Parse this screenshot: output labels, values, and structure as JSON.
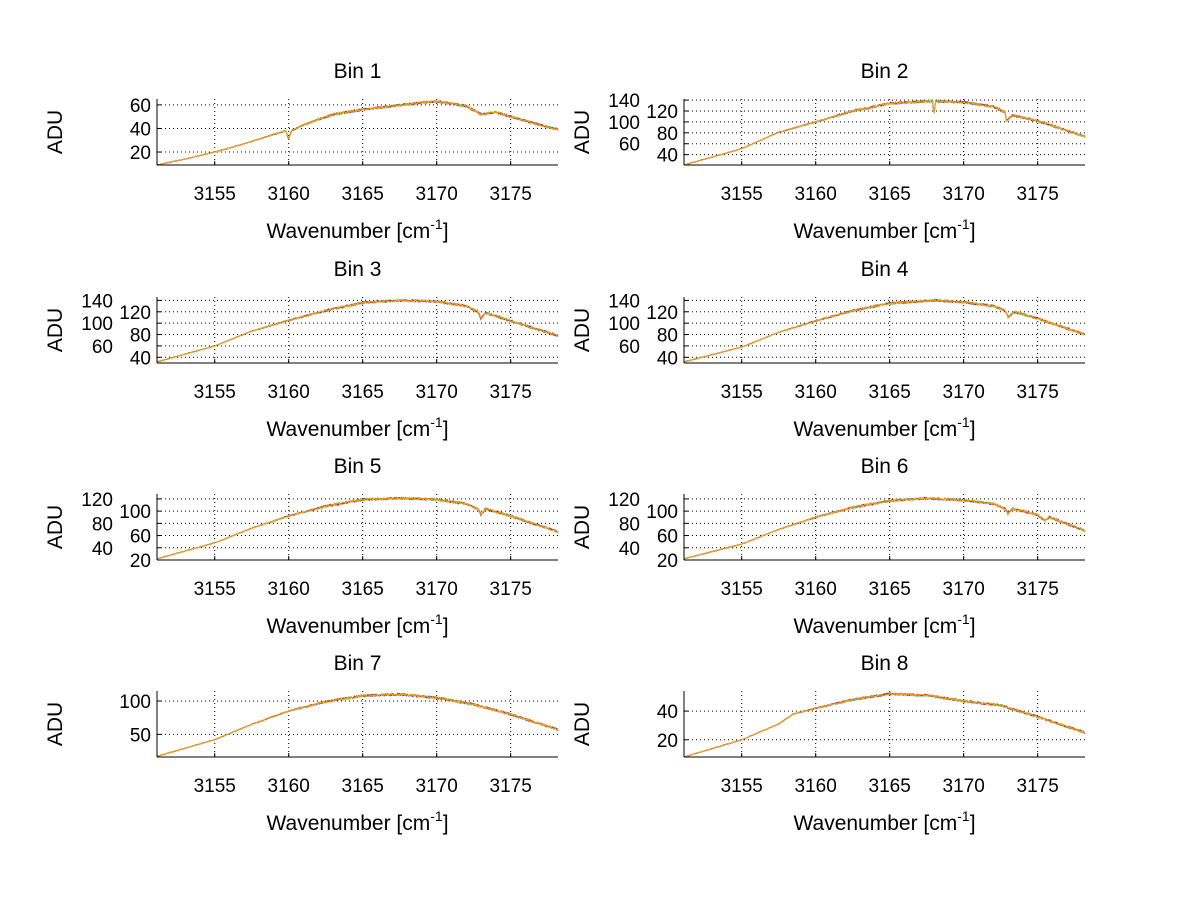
{
  "chart_data": {
    "type": "line",
    "layout": "4 rows x 2 columns",
    "xlabel": "Wavenumber [cm",
    "xlabel_superscript": "-1",
    "xlabel_suffix": "]",
    "ylabel": "ADU",
    "xlim": [
      3151.1,
      3178.2
    ],
    "xticks": [
      3155,
      3160,
      3165,
      3170,
      3175
    ],
    "grid": "dotted",
    "series_colors": [
      "#1f1f7a",
      "#4cc24c",
      "#c03030",
      "#f2a81d"
    ],
    "subplots": [
      {
        "title": "Bin 1",
        "ylim": [
          9,
          65
        ],
        "yticks": [
          20,
          40,
          60
        ],
        "x": [
          3151.1,
          3153,
          3155,
          3157,
          3159,
          3159.8,
          3160,
          3160.2,
          3161,
          3163,
          3165,
          3167,
          3169,
          3170,
          3172,
          3173,
          3174,
          3175,
          3177,
          3178.2
        ],
        "y": [
          9,
          14,
          20,
          27,
          35,
          38,
          31,
          38,
          43,
          52,
          56,
          59,
          62,
          63,
          59,
          52,
          54,
          50,
          43,
          39
        ]
      },
      {
        "title": "Bin 2",
        "ylim": [
          21,
          142
        ],
        "yticks": [
          40,
          60,
          80,
          100,
          120,
          140
        ],
        "x": [
          3151.1,
          3155,
          3157.5,
          3160,
          3162.5,
          3165,
          3167.9,
          3168,
          3168.1,
          3170,
          3172,
          3172.8,
          3172.9,
          3173.3,
          3175,
          3178.2
        ],
        "y": [
          21,
          51,
          81,
          100,
          120,
          134,
          138,
          113,
          138,
          136,
          128,
          118,
          101,
          112,
          102,
          73
        ]
      },
      {
        "title": "Bin 3",
        "ylim": [
          30,
          146
        ],
        "yticks": [
          40,
          60,
          80,
          100,
          120,
          140
        ],
        "x": [
          3151.1,
          3155,
          3157.5,
          3160,
          3162.5,
          3165,
          3167.5,
          3170,
          3172,
          3172.8,
          3173,
          3173.3,
          3175,
          3178.2
        ],
        "y": [
          32,
          60,
          86,
          105,
          122,
          136,
          140,
          138,
          130,
          120,
          108,
          118,
          104,
          78
        ]
      },
      {
        "title": "Bin 4",
        "ylim": [
          30,
          146
        ],
        "yticks": [
          40,
          60,
          80,
          100,
          120,
          140
        ],
        "x": [
          3151.1,
          3155,
          3157.5,
          3160,
          3162.5,
          3165,
          3168,
          3170,
          3172,
          3172.8,
          3173,
          3173.4,
          3174,
          3175,
          3178.2
        ],
        "y": [
          32,
          58,
          84,
          104,
          122,
          135,
          140,
          137,
          130,
          122,
          110,
          120,
          116,
          108,
          80
        ]
      },
      {
        "title": "Bin 5",
        "ylim": [
          20,
          128
        ],
        "yticks": [
          20,
          40,
          60,
          80,
          100,
          120
        ],
        "x": [
          3151.1,
          3155,
          3157.5,
          3160,
          3162.5,
          3165,
          3167.5,
          3170,
          3172,
          3172.8,
          3173,
          3173.3,
          3175,
          3178.2
        ],
        "y": [
          22,
          48,
          72,
          92,
          108,
          119,
          121,
          119,
          112,
          103,
          94,
          104,
          92,
          66
        ]
      },
      {
        "title": "Bin 6",
        "ylim": [
          20,
          128
        ],
        "yticks": [
          20,
          40,
          60,
          80,
          100,
          120
        ],
        "x": [
          3151.1,
          3155,
          3157.5,
          3160,
          3162.5,
          3165,
          3167.5,
          3170,
          3172,
          3172.8,
          3173,
          3173.3,
          3175,
          3175.5,
          3175.8,
          3178.2
        ],
        "y": [
          22,
          46,
          70,
          90,
          106,
          117,
          121,
          118,
          112,
          104,
          96,
          104,
          94,
          84,
          90,
          68
        ]
      },
      {
        "title": "Bin 7",
        "ylim": [
          16,
          115
        ],
        "yticks": [
          50,
          100
        ],
        "x": [
          3151.1,
          3155,
          3157.5,
          3160,
          3162.5,
          3165,
          3167.5,
          3170,
          3172.5,
          3175,
          3178.2
        ],
        "y": [
          17,
          42,
          65,
          85,
          99,
          108,
          110,
          105,
          95,
          80,
          57
        ]
      },
      {
        "title": "Bin 8",
        "ylim": [
          8,
          54
        ],
        "yticks": [
          20,
          40
        ],
        "x": [
          3151.1,
          3155,
          3157.5,
          3158.5,
          3160,
          3162.5,
          3165,
          3167.5,
          3170,
          3172.5,
          3175,
          3178.2
        ],
        "y": [
          8,
          20,
          31,
          38,
          42,
          48,
          52,
          51,
          47,
          44,
          36,
          25
        ]
      }
    ]
  }
}
